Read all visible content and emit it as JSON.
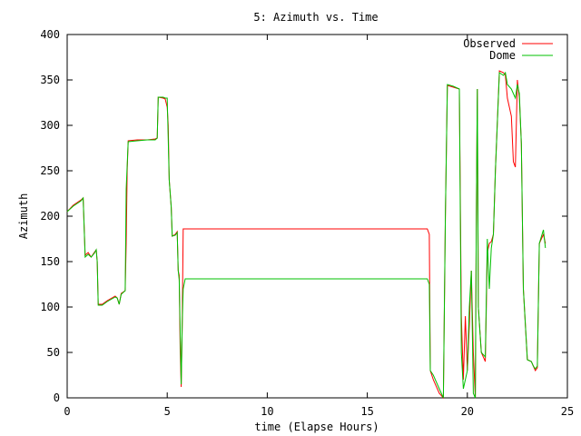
{
  "chart_data": {
    "type": "line",
    "title": "5: Azimuth vs. Time",
    "xlabel": "time (Elapse Hours)",
    "ylabel": "Azimuth",
    "xlim": [
      0,
      25
    ],
    "ylim": [
      0,
      400
    ],
    "x_ticks": [
      "0",
      "5",
      "10",
      "15",
      "20",
      "25"
    ],
    "y_ticks": [
      "0",
      "50",
      "100",
      "150",
      "200",
      "250",
      "300",
      "350",
      "400"
    ],
    "legend_position": "top-right",
    "grid": false,
    "series": [
      {
        "name": "Observed",
        "color": "#ff0000",
        "points": [
          [
            0.0,
            205
          ],
          [
            0.3,
            212
          ],
          [
            0.7,
            218
          ],
          [
            0.8,
            220
          ],
          [
            0.9,
            157
          ],
          [
            1.05,
            160
          ],
          [
            1.2,
            155
          ],
          [
            1.35,
            160
          ],
          [
            1.45,
            163
          ],
          [
            1.5,
            150
          ],
          [
            1.55,
            103
          ],
          [
            1.75,
            103
          ],
          [
            2.0,
            107
          ],
          [
            2.4,
            112
          ],
          [
            2.5,
            110
          ],
          [
            2.6,
            103
          ],
          [
            2.7,
            115
          ],
          [
            2.9,
            118
          ],
          [
            2.95,
            170
          ],
          [
            3.0,
            250
          ],
          [
            3.05,
            283
          ],
          [
            3.5,
            284
          ],
          [
            4.0,
            284
          ],
          [
            4.4,
            285
          ],
          [
            4.5,
            286
          ],
          [
            4.55,
            331
          ],
          [
            4.8,
            330
          ],
          [
            4.9,
            329
          ],
          [
            5.0,
            320
          ],
          [
            5.05,
            300
          ],
          [
            5.1,
            240
          ],
          [
            5.2,
            210
          ],
          [
            5.25,
            178
          ],
          [
            5.4,
            180
          ],
          [
            5.5,
            183
          ],
          [
            5.55,
            140
          ],
          [
            5.6,
            135
          ],
          [
            5.65,
            52
          ],
          [
            5.7,
            12
          ],
          [
            5.75,
            80
          ],
          [
            5.8,
            186
          ],
          [
            6.5,
            186
          ],
          [
            10,
            186
          ],
          [
            15,
            186
          ],
          [
            18.0,
            186
          ],
          [
            18.1,
            180
          ],
          [
            18.15,
            30
          ],
          [
            18.3,
            20
          ],
          [
            18.6,
            5
          ],
          [
            18.8,
            0
          ],
          [
            18.9,
            200
          ],
          [
            19.0,
            344
          ],
          [
            19.3,
            342
          ],
          [
            19.6,
            340
          ],
          [
            19.7,
            90
          ],
          [
            19.8,
            20
          ],
          [
            19.9,
            90
          ],
          [
            20.0,
            30
          ],
          [
            20.1,
            80
          ],
          [
            20.2,
            140
          ],
          [
            20.3,
            50
          ],
          [
            20.4,
            0
          ],
          [
            20.45,
            200
          ],
          [
            20.5,
            340
          ],
          [
            20.55,
            100
          ],
          [
            20.7,
            50
          ],
          [
            20.9,
            40
          ],
          [
            21.0,
            160
          ],
          [
            21.1,
            170
          ],
          [
            21.2,
            172
          ],
          [
            21.3,
            180
          ],
          [
            21.4,
            250
          ],
          [
            21.6,
            360
          ],
          [
            21.8,
            358
          ],
          [
            21.9,
            355
          ],
          [
            22.0,
            330
          ],
          [
            22.2,
            310
          ],
          [
            22.3,
            260
          ],
          [
            22.4,
            254
          ],
          [
            22.5,
            350
          ],
          [
            22.6,
            330
          ],
          [
            22.7,
            280
          ],
          [
            22.8,
            120
          ],
          [
            23.0,
            42
          ],
          [
            23.2,
            40
          ],
          [
            23.3,
            35
          ],
          [
            23.4,
            30
          ],
          [
            23.5,
            33
          ],
          [
            23.6,
            170
          ],
          [
            23.8,
            180
          ],
          [
            23.9,
            170
          ]
        ]
      },
      {
        "name": "Dome",
        "color": "#00c000",
        "points": [
          [
            0.0,
            205
          ],
          [
            0.3,
            211
          ],
          [
            0.7,
            217
          ],
          [
            0.8,
            220
          ],
          [
            0.9,
            155
          ],
          [
            1.05,
            158
          ],
          [
            1.2,
            155
          ],
          [
            1.35,
            159
          ],
          [
            1.45,
            163
          ],
          [
            1.5,
            150
          ],
          [
            1.55,
            102
          ],
          [
            1.75,
            102
          ],
          [
            2.0,
            106
          ],
          [
            2.4,
            111
          ],
          [
            2.5,
            110
          ],
          [
            2.6,
            103
          ],
          [
            2.7,
            114
          ],
          [
            2.9,
            118
          ],
          [
            2.95,
            230
          ],
          [
            3.05,
            282
          ],
          [
            3.5,
            283
          ],
          [
            4.0,
            284
          ],
          [
            4.4,
            284
          ],
          [
            4.5,
            286
          ],
          [
            4.55,
            331
          ],
          [
            4.8,
            331
          ],
          [
            4.9,
            330
          ],
          [
            5.0,
            330
          ],
          [
            5.1,
            240
          ],
          [
            5.2,
            210
          ],
          [
            5.25,
            178
          ],
          [
            5.4,
            179
          ],
          [
            5.5,
            182
          ],
          [
            5.55,
            140
          ],
          [
            5.6,
            130
          ],
          [
            5.7,
            15
          ],
          [
            5.75,
            80
          ],
          [
            5.8,
            120
          ],
          [
            5.9,
            131
          ],
          [
            6.5,
            131
          ],
          [
            10,
            131
          ],
          [
            15,
            131
          ],
          [
            18.0,
            131
          ],
          [
            18.1,
            125
          ],
          [
            18.15,
            30
          ],
          [
            18.3,
            25
          ],
          [
            18.6,
            10
          ],
          [
            18.8,
            0
          ],
          [
            18.9,
            200
          ],
          [
            19.0,
            345
          ],
          [
            19.3,
            343
          ],
          [
            19.6,
            340
          ],
          [
            19.7,
            50
          ],
          [
            19.8,
            10
          ],
          [
            19.9,
            20
          ],
          [
            20.0,
            30
          ],
          [
            20.1,
            100
          ],
          [
            20.2,
            140
          ],
          [
            20.3,
            5
          ],
          [
            20.4,
            0
          ],
          [
            20.45,
            200
          ],
          [
            20.5,
            340
          ],
          [
            20.55,
            100
          ],
          [
            20.7,
            50
          ],
          [
            20.9,
            45
          ],
          [
            21.0,
            175
          ],
          [
            21.1,
            120
          ],
          [
            21.2,
            165
          ],
          [
            21.3,
            180
          ],
          [
            21.4,
            250
          ],
          [
            21.6,
            358
          ],
          [
            21.8,
            355
          ],
          [
            21.9,
            358
          ],
          [
            22.0,
            345
          ],
          [
            22.2,
            340
          ],
          [
            22.3,
            335
          ],
          [
            22.4,
            330
          ],
          [
            22.5,
            345
          ],
          [
            22.6,
            335
          ],
          [
            22.7,
            280
          ],
          [
            22.8,
            120
          ],
          [
            23.0,
            42
          ],
          [
            23.2,
            40
          ],
          [
            23.3,
            35
          ],
          [
            23.4,
            32
          ],
          [
            23.5,
            35
          ],
          [
            23.6,
            170
          ],
          [
            23.8,
            185
          ],
          [
            23.9,
            165
          ]
        ]
      }
    ]
  }
}
